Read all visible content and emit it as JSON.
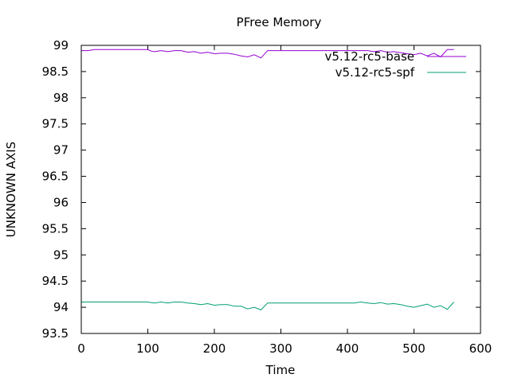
{
  "chart_data": {
    "type": "line",
    "title": "PFree Memory",
    "xlabel": "Time",
    "ylabel": "UNKNOWN AXIS",
    "xlim": [
      0,
      600
    ],
    "ylim": [
      93.5,
      99
    ],
    "xticks": [
      "0",
      "100",
      "200",
      "300",
      "400",
      "500",
      "600"
    ],
    "yticks": [
      "93.5",
      "94",
      "94.5",
      "95",
      "95.5",
      "96",
      "96.5",
      "97",
      "97.5",
      "98",
      "98.5",
      "99"
    ],
    "grid": false,
    "legend_position": "top-right",
    "series": [
      {
        "name": "v5.12-rc5-base",
        "color": "#9400d3",
        "x": [
          0,
          10,
          20,
          50,
          80,
          100,
          105,
          110,
          120,
          130,
          140,
          150,
          160,
          170,
          180,
          190,
          200,
          210,
          220,
          230,
          240,
          250,
          260,
          270,
          280,
          290,
          300,
          350,
          400,
          410,
          420,
          430,
          440,
          450,
          460,
          470,
          480,
          490,
          500,
          510,
          520,
          530,
          540,
          550,
          560
        ],
        "y": [
          98.9,
          98.9,
          98.92,
          98.92,
          98.92,
          98.92,
          98.89,
          98.88,
          98.9,
          98.88,
          98.9,
          98.9,
          98.87,
          98.88,
          98.85,
          98.87,
          98.84,
          98.85,
          98.85,
          98.83,
          98.8,
          98.78,
          98.82,
          98.76,
          98.9,
          98.9,
          98.9,
          98.9,
          98.9,
          98.9,
          98.9,
          98.9,
          98.88,
          98.9,
          98.87,
          98.88,
          98.86,
          98.84,
          98.82,
          98.85,
          98.8,
          98.85,
          98.78,
          98.92,
          98.92
        ]
      },
      {
        "name": "v5.12-rc5-spf",
        "color": "#009e73",
        "x": [
          0,
          10,
          20,
          50,
          80,
          100,
          105,
          110,
          120,
          130,
          140,
          150,
          160,
          170,
          180,
          190,
          200,
          210,
          220,
          230,
          240,
          250,
          260,
          270,
          280,
          290,
          300,
          350,
          400,
          410,
          420,
          430,
          440,
          450,
          460,
          470,
          480,
          490,
          500,
          510,
          520,
          530,
          540,
          550,
          560
        ],
        "y": [
          94.1,
          94.1,
          94.1,
          94.1,
          94.1,
          94.1,
          94.09,
          94.08,
          94.1,
          94.08,
          94.1,
          94.1,
          94.08,
          94.07,
          94.05,
          94.07,
          94.04,
          94.05,
          94.05,
          94.02,
          94.02,
          93.97,
          94.0,
          93.95,
          94.08,
          94.08,
          94.08,
          94.08,
          94.08,
          94.08,
          94.1,
          94.08,
          94.07,
          94.09,
          94.06,
          94.07,
          94.05,
          94.02,
          94.0,
          94.03,
          94.06,
          94.0,
          94.03,
          93.96,
          94.1
        ]
      }
    ]
  }
}
